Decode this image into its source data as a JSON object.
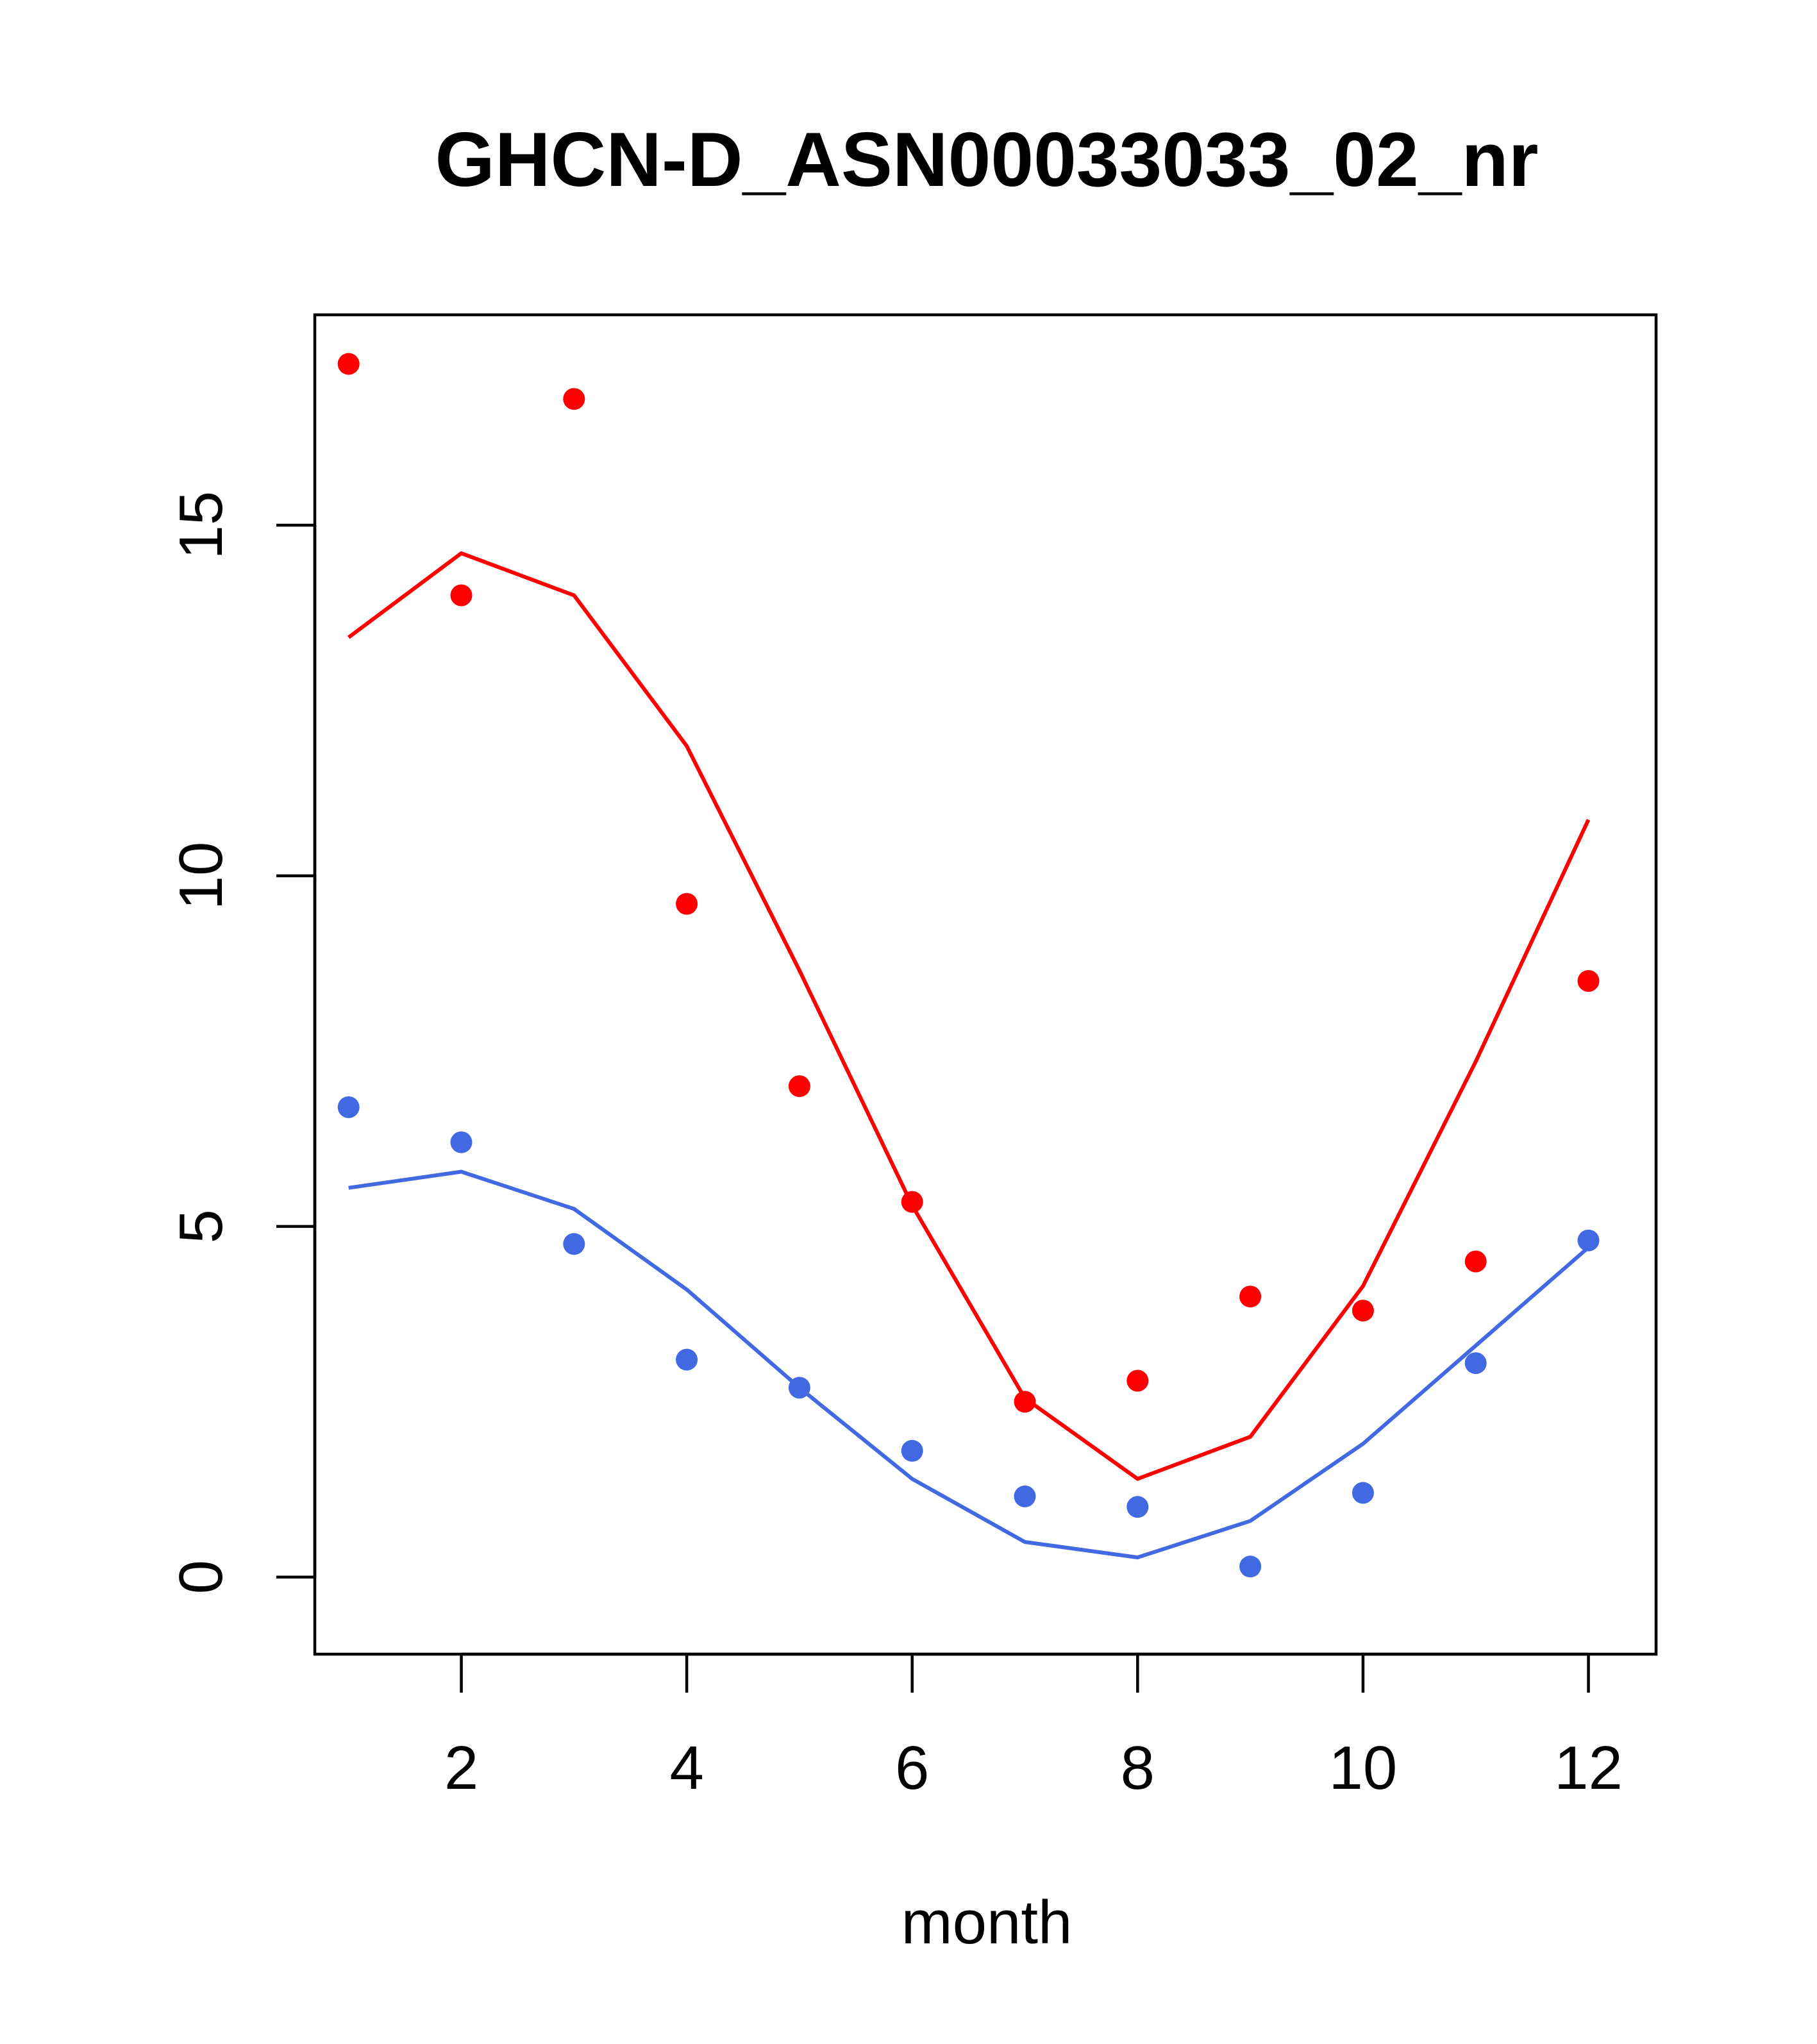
{
  "chart_data": {
    "type": "line",
    "title": "GHCN-D_ASN00033033_02_nr",
    "xlabel": "month",
    "ylabel": "",
    "xlim": [
      0.7,
      12.6
    ],
    "ylim": [
      -1.1,
      18.0
    ],
    "xticks": [
      2,
      4,
      6,
      8,
      10,
      12
    ],
    "yticks": [
      0,
      5,
      10,
      15
    ],
    "x": [
      1,
      2,
      3,
      4,
      5,
      6,
      7,
      8,
      9,
      10,
      11,
      12
    ],
    "series": [
      {
        "color": "#ff0000",
        "line": [
          13.4,
          14.6,
          14.0,
          11.85,
          8.65,
          5.3,
          2.55,
          1.4,
          2.0,
          4.15,
          7.35,
          10.8
        ],
        "points": [
          17.3,
          14.0,
          16.8,
          9.6,
          7.0,
          5.35,
          2.5,
          2.8,
          4.0,
          3.8,
          4.5,
          8.5
        ]
      },
      {
        "color": "#4169e1",
        "line": [
          5.55,
          5.78,
          5.25,
          4.1,
          2.7,
          1.4,
          0.5,
          0.28,
          0.8,
          1.9,
          3.3,
          4.7
        ],
        "points": [
          6.7,
          6.2,
          4.75,
          3.1,
          2.7,
          1.8,
          1.15,
          1.0,
          0.15,
          1.2,
          3.05,
          4.8
        ]
      }
    ]
  }
}
